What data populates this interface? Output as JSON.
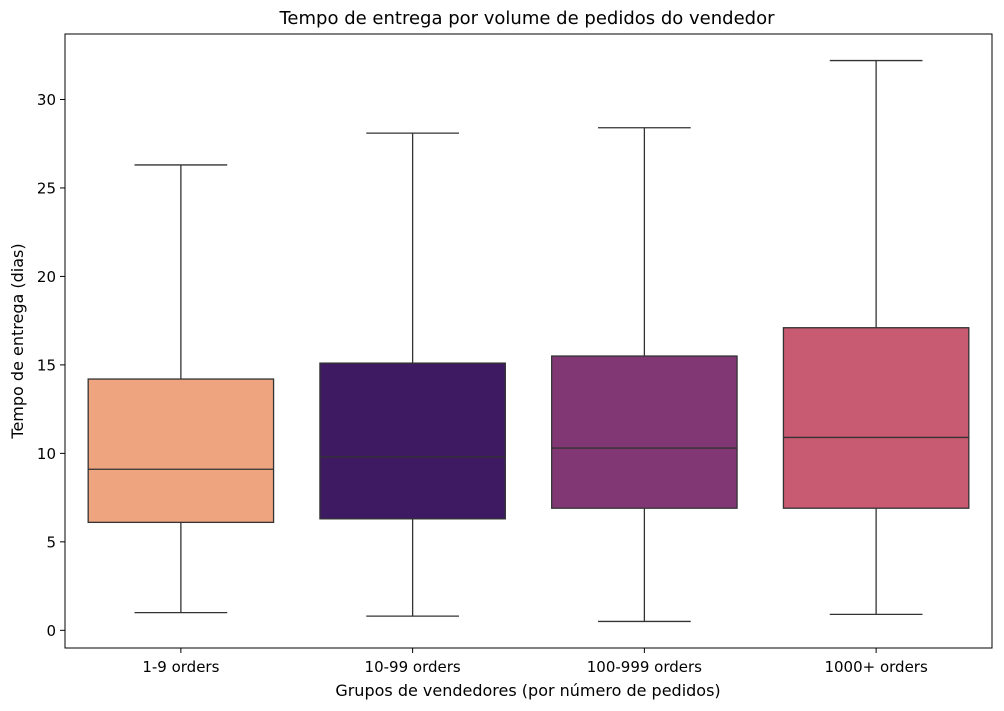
{
  "chart_data": {
    "type": "box",
    "title": "Tempo de entrega por volume de pedidos do vendedor",
    "xlabel": "Grupos de vendedores (por número de pedidos)",
    "ylabel": "Tempo de entrega (dias)",
    "ylim": [
      -1.0,
      33.7
    ],
    "yticks": [
      0,
      5,
      10,
      15,
      20,
      25,
      30
    ],
    "grid": false,
    "categories": [
      "1-9 orders",
      "10-99 orders",
      "100-999 orders",
      "1000+ orders"
    ],
    "boxes": [
      {
        "category": "1-9 orders",
        "whisker_low": 1.0,
        "q1": 6.1,
        "median": 9.1,
        "q3": 14.2,
        "whisker_high": 26.3,
        "color": "#EDA47F"
      },
      {
        "category": "10-99 orders",
        "whisker_low": 0.8,
        "q1": 6.3,
        "median": 9.8,
        "q3": 15.1,
        "whisker_high": 28.1,
        "color": "#3D1A61"
      },
      {
        "category": "100-999 orders",
        "whisker_low": 0.5,
        "q1": 6.9,
        "median": 10.3,
        "q3": 15.5,
        "whisker_high": 28.4,
        "color": "#823775"
      },
      {
        "category": "1000+ orders",
        "whisker_low": 0.9,
        "q1": 6.9,
        "median": 10.9,
        "q3": 17.1,
        "whisker_high": 32.2,
        "color": "#C85A72"
      }
    ]
  }
}
